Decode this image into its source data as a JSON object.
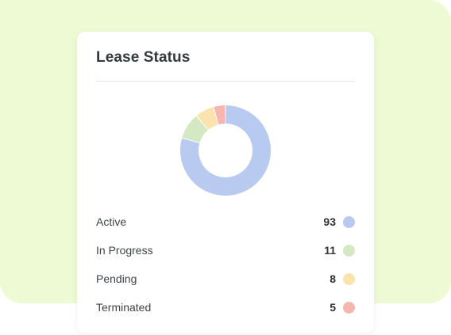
{
  "card": {
    "title": "Lease Status"
  },
  "colors": {
    "background": "#eefad4",
    "active": "#b8caf0",
    "in_progress": "#d4e8c4",
    "pending": "#fbe3b0",
    "terminated": "#f7b6b0"
  },
  "legend": [
    {
      "label": "Active",
      "value": "93",
      "color": "#b8caf0"
    },
    {
      "label": "In Progress",
      "value": "11",
      "color": "#d4e8c4"
    },
    {
      "label": "Pending",
      "value": "8",
      "color": "#fbe3b0"
    },
    {
      "label": "Terminated",
      "value": "5",
      "color": "#f7b6b0"
    }
  ],
  "chart_data": {
    "type": "pie",
    "categories": [
      "Active",
      "In Progress",
      "Pending",
      "Terminated"
    ],
    "values": [
      93,
      11,
      8,
      5
    ],
    "colors": [
      "#b8caf0",
      "#d4e8c4",
      "#fbe3b0",
      "#f7b6b0"
    ]
  }
}
